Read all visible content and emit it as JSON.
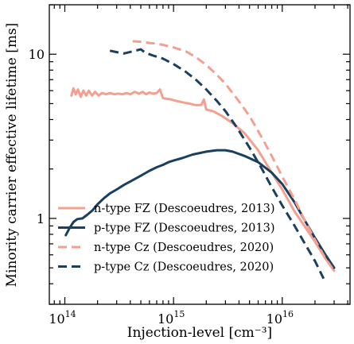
{
  "chart_data": {
    "type": "line",
    "xlabel": "Injection-level [cm⁻³]",
    "ylabel": "Minority carrier effective lifetime [ms]",
    "xscale": "log",
    "yscale": "log",
    "xlim": [
      72000000000000.0,
      4.2e+16
    ],
    "ylim": [
      0.3,
      20
    ],
    "x_tick_labels": [
      {
        "value": 100000000000000.0,
        "base": "10",
        "exp": "14"
      },
      {
        "value": 1000000000000000.0,
        "base": "10",
        "exp": "15"
      },
      {
        "value": 1e+16,
        "base": "10",
        "exp": "16"
      }
    ],
    "y_tick_labels": [
      {
        "value": 1,
        "label": "1"
      },
      {
        "value": 10,
        "label": "10"
      }
    ],
    "legend_position": "lower-left",
    "series": [
      {
        "name": "n-type FZ (Descoeudres, 2013)",
        "color": "#f4a090",
        "dash": "solid",
        "points": [
          [
            115000000000000.0,
            5.6
          ],
          [
            120000000000000.0,
            6.2
          ],
          [
            126000000000000.0,
            5.7
          ],
          [
            132000000000000.0,
            6.1
          ],
          [
            140000000000000.0,
            5.5
          ],
          [
            148000000000000.0,
            6.0
          ],
          [
            157000000000000.0,
            5.6
          ],
          [
            166000000000000.0,
            6.0
          ],
          [
            178000000000000.0,
            5.6
          ],
          [
            190000000000000.0,
            5.9
          ],
          [
            205000000000000.0,
            5.6
          ],
          [
            220000000000000.0,
            5.8
          ],
          [
            240000000000000.0,
            5.7
          ],
          [
            260000000000000.0,
            5.8
          ],
          [
            285000000000000.0,
            5.7
          ],
          [
            310000000000000.0,
            5.75
          ],
          [
            340000000000000.0,
            5.7
          ],
          [
            370000000000000.0,
            5.8
          ],
          [
            400000000000000.0,
            5.7
          ],
          [
            440000000000000.0,
            5.9
          ],
          [
            480000000000000.0,
            5.75
          ],
          [
            520000000000000.0,
            5.9
          ],
          [
            560000000000000.0,
            5.7
          ],
          [
            600000000000000.0,
            5.85
          ],
          [
            650000000000000.0,
            5.75
          ],
          [
            700000000000000.0,
            5.8
          ],
          [
            750000000000000.0,
            6.1
          ],
          [
            800000000000000.0,
            5.4
          ],
          [
            870000000000000.0,
            5.35
          ],
          [
            950000000000000.0,
            5.3
          ],
          [
            1050000000000000.0,
            5.2
          ],
          [
            1200000000000000.0,
            5.1
          ],
          [
            1400000000000000.0,
            5.0
          ],
          [
            1600000000000000.0,
            4.9
          ],
          [
            1800000000000000.0,
            4.9
          ],
          [
            1900000000000000.0,
            5.3
          ],
          [
            2000000000000000.0,
            4.6
          ],
          [
            2300000000000000.0,
            4.5
          ],
          [
            2800000000000000.0,
            4.2
          ],
          [
            3500000000000000.0,
            3.8
          ],
          [
            4500000000000000.0,
            3.3
          ],
          [
            6000000000000000.0,
            2.6
          ],
          [
            8000000000000000.0,
            1.9
          ],
          [
            1e+16,
            1.5
          ],
          [
            1.3e+16,
            1.1
          ],
          [
            1.6e+16,
            0.9
          ],
          [
            2e+16,
            0.72
          ],
          [
            2.5e+16,
            0.57
          ],
          [
            3e+16,
            0.48
          ]
        ]
      },
      {
        "name": "p-type FZ (Descoeudres, 2013)",
        "color": "#1b3f5e",
        "dash": "solid",
        "points": [
          [
            102000000000000.0,
            0.79
          ],
          [
            110000000000000.0,
            0.87
          ],
          [
            120000000000000.0,
            0.95
          ],
          [
            130000000000000.0,
            0.99
          ],
          [
            145000000000000.0,
            1.0
          ],
          [
            160000000000000.0,
            1.05
          ],
          [
            180000000000000.0,
            1.12
          ],
          [
            200000000000000.0,
            1.22
          ],
          [
            230000000000000.0,
            1.33
          ],
          [
            260000000000000.0,
            1.42
          ],
          [
            300000000000000.0,
            1.5
          ],
          [
            350000000000000.0,
            1.6
          ],
          [
            400000000000000.0,
            1.68
          ],
          [
            500000000000000.0,
            1.82
          ],
          [
            600000000000000.0,
            1.95
          ],
          [
            700000000000000.0,
            2.05
          ],
          [
            800000000000000.0,
            2.12
          ],
          [
            900000000000000.0,
            2.2
          ],
          [
            1000000000000000.0,
            2.25
          ],
          [
            1200000000000000.0,
            2.33
          ],
          [
            1500000000000000.0,
            2.45
          ],
          [
            2000000000000000.0,
            2.55
          ],
          [
            2500000000000000.0,
            2.6
          ],
          [
            3000000000000000.0,
            2.6
          ],
          [
            3500000000000000.0,
            2.55
          ],
          [
            4500000000000000.0,
            2.4
          ],
          [
            6000000000000000.0,
            2.2
          ],
          [
            8000000000000000.0,
            1.9
          ],
          [
            1e+16,
            1.62
          ],
          [
            1.3e+16,
            1.25
          ],
          [
            1.6e+16,
            0.98
          ],
          [
            2e+16,
            0.76
          ],
          [
            2.5e+16,
            0.6
          ],
          [
            3e+16,
            0.5
          ]
        ]
      },
      {
        "name": "n-type Cz (Descoeudres, 2020)",
        "color": "#f4a090",
        "dash": "dashed",
        "points": [
          [
            420000000000000.0,
            12.0
          ],
          [
            500000000000000.0,
            11.9
          ],
          [
            600000000000000.0,
            11.7
          ],
          [
            700000000000000.0,
            11.6
          ],
          [
            800000000000000.0,
            11.4
          ],
          [
            1000000000000000.0,
            11.0
          ],
          [
            1300000000000000.0,
            10.4
          ],
          [
            1600000000000000.0,
            9.6
          ],
          [
            2000000000000000.0,
            8.6
          ],
          [
            2500000000000000.0,
            7.5
          ],
          [
            3000000000000000.0,
            6.6
          ],
          [
            3800000000000000.0,
            5.4
          ],
          [
            5000000000000000.0,
            4.2
          ],
          [
            6500000000000000.0,
            3.1
          ],
          [
            8000000000000000.0,
            2.4
          ],
          [
            1e+16,
            1.8
          ],
          [
            1.3e+16,
            1.3
          ],
          [
            1.6e+16,
            0.98
          ],
          [
            2e+16,
            0.74
          ],
          [
            2.5e+16,
            0.57
          ],
          [
            3e+16,
            0.48
          ]
        ]
      },
      {
        "name": "p-type Cz (Descoeudres, 2020)",
        "color": "#1b3f5e",
        "dash": "dashed",
        "points": [
          [
            260000000000000.0,
            10.5
          ],
          [
            300000000000000.0,
            10.3
          ],
          [
            350000000000000.0,
            10.1
          ],
          [
            420000000000000.0,
            10.4
          ],
          [
            500000000000000.0,
            10.7
          ],
          [
            550000000000000.0,
            10.2
          ],
          [
            650000000000000.0,
            9.8
          ],
          [
            800000000000000.0,
            9.4
          ],
          [
            1000000000000000.0,
            8.7
          ],
          [
            1300000000000000.0,
            7.8
          ],
          [
            1600000000000000.0,
            7.0
          ],
          [
            2000000000000000.0,
            6.1
          ],
          [
            2500000000000000.0,
            5.2
          ],
          [
            3000000000000000.0,
            4.5
          ],
          [
            3800000000000000.0,
            3.6
          ],
          [
            5000000000000000.0,
            2.7
          ],
          [
            6500000000000000.0,
            2.0
          ],
          [
            8000000000000000.0,
            1.55
          ],
          [
            1e+16,
            1.2
          ],
          [
            1.3e+16,
            0.9
          ],
          [
            1.6e+16,
            0.71
          ],
          [
            2e+16,
            0.55
          ],
          [
            2.4e+16,
            0.43
          ]
        ]
      }
    ]
  }
}
